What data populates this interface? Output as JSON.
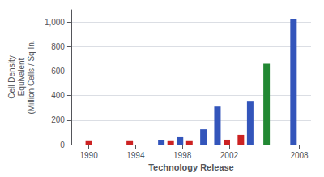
{
  "chart_data": {
    "type": "bar",
    "x": [
      1990.0,
      1993.5,
      1996.2,
      1997.0,
      1997.8,
      1998.6,
      1999.8,
      2001.0,
      2001.8,
      2003.0,
      2003.8,
      2005.2,
      2007.5
    ],
    "values": [
      28,
      28,
      38,
      28,
      60,
      28,
      125,
      310,
      40,
      80,
      350,
      660,
      1020
    ],
    "colors": [
      "#cc2222",
      "#cc2222",
      "#3355bb",
      "#cc2222",
      "#3355bb",
      "#cc2222",
      "#3355bb",
      "#3355bb",
      "#cc2222",
      "#cc2222",
      "#3355bb",
      "#228833",
      "#3355bb"
    ],
    "xlabel": "Technology Release",
    "ylabel": "Cell Density\nEquivalent\n(Million Cells / Sq In.",
    "xlim": [
      1988.5,
      2009.0
    ],
    "xticks": [
      1990,
      1994,
      1998,
      2002,
      2008
    ],
    "ylim": [
      0,
      1100
    ],
    "yticks": [
      0,
      200,
      400,
      600,
      800,
      {
        "value": 1000,
        "label": "1,000"
      }
    ],
    "grid": true
  }
}
